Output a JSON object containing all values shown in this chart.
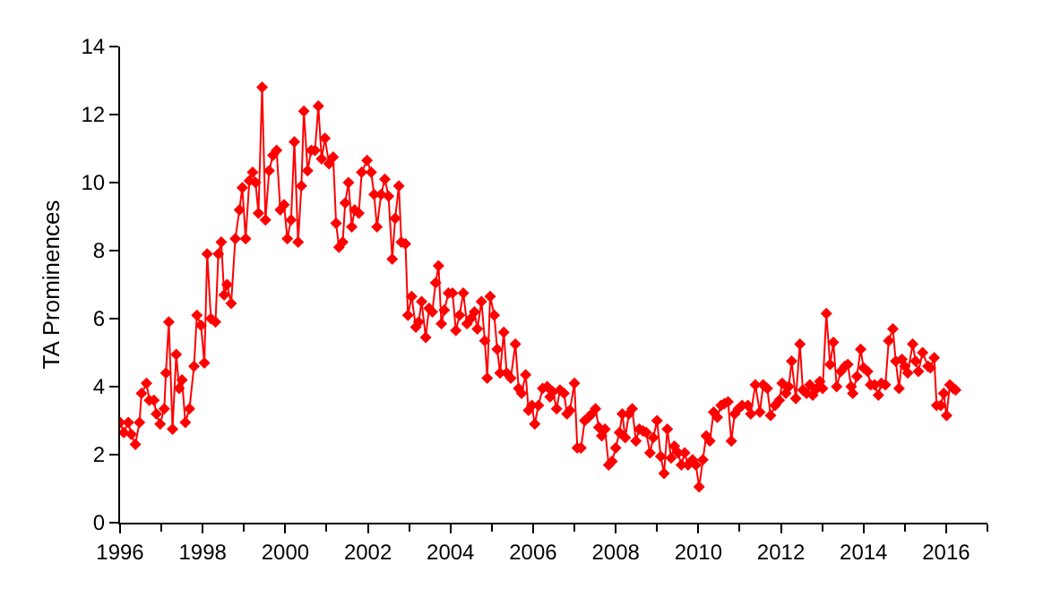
{
  "chart_data": {
    "type": "line",
    "ylabel": "TA Prominences",
    "marker": "diamond",
    "line_style": "solid",
    "xlim": [
      1996,
      2017
    ],
    "xticks": [
      1996,
      1998,
      2000,
      2002,
      2004,
      2006,
      2008,
      2010,
      2012,
      2014,
      2016
    ],
    "ylim": [
      0,
      14
    ],
    "yticks": [
      0,
      2,
      4,
      6,
      8,
      10,
      12,
      14
    ],
    "series": [
      {
        "color": "#ff0000",
        "x": [
          1996.0,
          1996.09,
          1996.2,
          1996.27,
          1996.37,
          1996.47,
          1996.52,
          1996.64,
          1996.71,
          1996.82,
          1996.88,
          1996.97,
          1997.07,
          1997.11,
          1997.18,
          1997.27,
          1997.36,
          1997.43,
          1997.5,
          1997.58,
          1997.68,
          1997.79,
          1997.86,
          1997.96,
          1998.04,
          1998.11,
          1998.2,
          1998.31,
          1998.38,
          1998.45,
          1998.52,
          1998.59,
          1998.69,
          1998.79,
          1998.89,
          1998.96,
          1999.04,
          1999.13,
          1999.21,
          1999.28,
          1999.35,
          1999.44,
          1999.52,
          1999.61,
          1999.7,
          1999.79,
          1999.88,
          1999.97,
          2000.05,
          2000.14,
          2000.22,
          2000.31,
          2000.39,
          2000.45,
          2000.54,
          2000.63,
          2000.72,
          2000.8,
          2000.88,
          2000.96,
          2001.06,
          2001.16,
          2001.23,
          2001.3,
          2001.39,
          2001.45,
          2001.53,
          2001.61,
          2001.68,
          2001.78,
          2001.85,
          2001.98,
          2002.08,
          2002.15,
          2002.22,
          2002.32,
          2002.41,
          2002.5,
          2002.59,
          2002.66,
          2002.75,
          2002.81,
          2002.91,
          2002.97,
          2003.06,
          2003.16,
          2003.23,
          2003.3,
          2003.4,
          2003.48,
          2003.56,
          2003.64,
          2003.71,
          2003.78,
          2003.85,
          2003.95,
          2004.05,
          2004.13,
          2004.22,
          2004.31,
          2004.4,
          2004.49,
          2004.58,
          2004.65,
          2004.75,
          2004.83,
          2004.89,
          2004.96,
          2005.06,
          2005.13,
          2005.2,
          2005.29,
          2005.36,
          2005.46,
          2005.57,
          2005.65,
          2005.72,
          2005.82,
          2005.89,
          2005.97,
          2006.04,
          2006.13,
          2006.23,
          2006.34,
          2006.41,
          2006.48,
          2006.57,
          2006.65,
          2006.75,
          2006.82,
          2006.89,
          2007.0,
          2007.07,
          2007.16,
          2007.25,
          2007.34,
          2007.42,
          2007.51,
          2007.59,
          2007.66,
          2007.74,
          2007.83,
          2007.91,
          2008.0,
          2008.09,
          2008.16,
          2008.23,
          2008.32,
          2008.4,
          2008.49,
          2008.57,
          2008.66,
          2008.74,
          2008.83,
          2008.91,
          2009.0,
          2009.09,
          2009.17,
          2009.25,
          2009.34,
          2009.42,
          2009.51,
          2009.59,
          2009.67,
          2009.75,
          2009.86,
          2009.94,
          2010.02,
          2010.11,
          2010.19,
          2010.28,
          2010.37,
          2010.46,
          2010.55,
          2010.63,
          2010.72,
          2010.8,
          2010.88,
          2010.97,
          2011.06,
          2011.2,
          2011.27,
          2011.38,
          2011.49,
          2011.57,
          2011.67,
          2011.75,
          2011.86,
          2011.96,
          2012.03,
          2012.12,
          2012.19,
          2012.26,
          2012.36,
          2012.46,
          2012.53,
          2012.62,
          2012.7,
          2012.77,
          2012.87,
          2012.94,
          2013.01,
          2013.1,
          2013.19,
          2013.27,
          2013.35,
          2013.45,
          2013.55,
          2013.62,
          2013.7,
          2013.74,
          2013.84,
          2013.93,
          2014.0,
          2014.1,
          2014.17,
          2014.27,
          2014.36,
          2014.43,
          2014.53,
          2014.61,
          2014.71,
          2014.78,
          2014.86,
          2014.93,
          2015.0,
          2015.07,
          2015.19,
          2015.26,
          2015.33,
          2015.43,
          2015.56,
          2015.62,
          2015.71,
          2015.77,
          2015.87,
          2015.94,
          2016.01,
          2016.09,
          2016.17,
          2016.23
        ],
        "values": [
          2.95,
          2.65,
          2.95,
          2.6,
          2.3,
          2.95,
          3.8,
          4.1,
          3.6,
          3.6,
          3.2,
          2.9,
          3.35,
          4.4,
          5.9,
          2.75,
          4.95,
          3.95,
          4.2,
          2.95,
          3.35,
          4.6,
          6.1,
          5.8,
          4.7,
          7.9,
          6.0,
          5.9,
          7.9,
          8.25,
          6.7,
          7.0,
          6.45,
          8.35,
          9.2,
          9.85,
          8.35,
          10.05,
          10.3,
          10.0,
          9.1,
          12.8,
          8.9,
          10.35,
          10.8,
          10.95,
          9.2,
          9.35,
          8.35,
          8.9,
          11.2,
          8.25,
          9.9,
          12.1,
          10.35,
          10.95,
          10.95,
          12.25,
          10.7,
          11.3,
          10.55,
          10.75,
          8.8,
          8.1,
          8.25,
          9.4,
          10.0,
          8.7,
          9.2,
          9.1,
          10.3,
          10.65,
          10.3,
          9.65,
          8.7,
          9.65,
          10.1,
          9.6,
          7.75,
          8.95,
          9.9,
          8.25,
          8.2,
          6.1,
          6.65,
          5.75,
          5.9,
          6.5,
          5.45,
          6.3,
          6.2,
          7.05,
          7.55,
          5.85,
          6.25,
          6.75,
          6.75,
          5.65,
          6.1,
          6.75,
          5.85,
          6.0,
          6.2,
          5.7,
          6.5,
          5.35,
          4.25,
          6.65,
          6.1,
          5.1,
          4.4,
          5.6,
          4.4,
          4.25,
          5.25,
          3.95,
          3.8,
          4.35,
          3.3,
          3.45,
          2.9,
          3.45,
          3.95,
          4.0,
          3.7,
          3.85,
          3.35,
          3.9,
          3.8,
          3.2,
          3.3,
          4.1,
          2.2,
          2.2,
          3.0,
          3.1,
          3.2,
          3.35,
          2.8,
          2.55,
          2.75,
          1.7,
          1.8,
          2.2,
          2.65,
          3.2,
          2.5,
          3.2,
          3.35,
          2.4,
          2.75,
          2.7,
          2.65,
          2.05,
          2.5,
          3.0,
          1.95,
          1.45,
          2.75,
          1.9,
          2.25,
          2.05,
          1.7,
          2.05,
          1.7,
          1.85,
          1.7,
          1.05,
          1.85,
          2.55,
          2.4,
          3.25,
          3.1,
          3.45,
          3.5,
          3.55,
          2.4,
          3.2,
          3.35,
          3.45,
          3.45,
          3.2,
          4.05,
          3.25,
          4.05,
          3.95,
          3.15,
          3.45,
          3.6,
          4.1,
          3.8,
          4.0,
          4.75,
          3.65,
          5.25,
          3.9,
          3.8,
          4.05,
          3.75,
          3.95,
          4.15,
          3.95,
          6.15,
          4.65,
          5.3,
          4.0,
          4.45,
          4.6,
          4.65,
          4.0,
          3.8,
          4.3,
          5.1,
          4.55,
          4.45,
          4.05,
          4.05,
          3.75,
          4.1,
          4.05,
          5.35,
          5.7,
          4.75,
          3.95,
          4.8,
          4.6,
          4.4,
          5.25,
          4.75,
          4.45,
          5.0,
          4.6,
          4.55,
          4.85,
          3.45,
          3.45,
          3.8,
          3.15,
          4.05,
          3.95,
          3.9
        ]
      }
    ]
  }
}
